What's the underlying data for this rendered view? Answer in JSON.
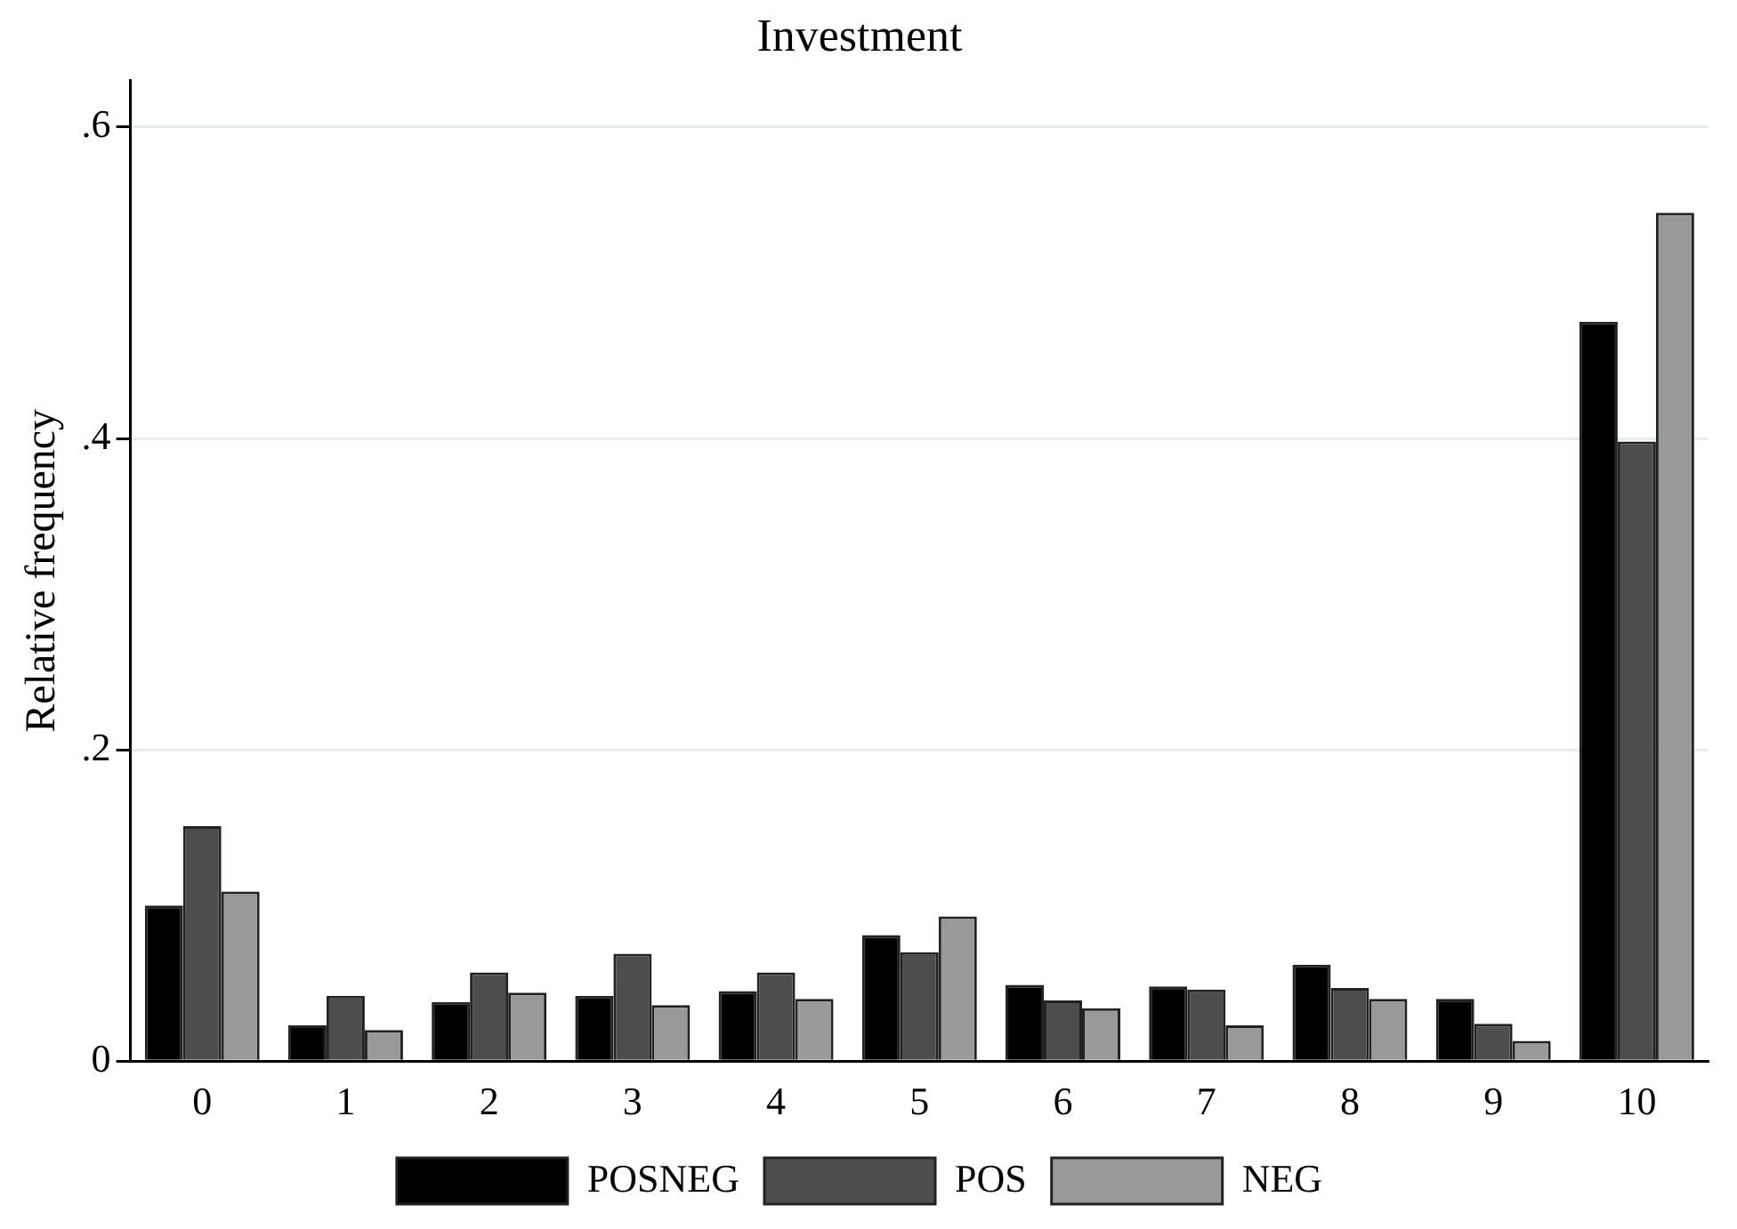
{
  "chart_data": {
    "type": "bar",
    "title": "Investment",
    "ylabel": "Relative frequency",
    "categories": [
      "0",
      "1",
      "2",
      "3",
      "4",
      "5",
      "6",
      "7",
      "8",
      "9",
      "10"
    ],
    "series": [
      {
        "name": "POSNEG",
        "color": "#000000",
        "values": [
          0.1,
          0.023,
          0.038,
          0.042,
          0.045,
          0.081,
          0.049,
          0.048,
          0.062,
          0.04,
          0.475
        ]
      },
      {
        "name": "POS",
        "color": "#4d4d4d",
        "values": [
          0.151,
          0.042,
          0.057,
          0.069,
          0.057,
          0.07,
          0.039,
          0.046,
          0.047,
          0.024,
          0.398
        ]
      },
      {
        "name": "NEG",
        "color": "#999999",
        "values": [
          0.109,
          0.02,
          0.044,
          0.036,
          0.04,
          0.093,
          0.034,
          0.023,
          0.04,
          0.013,
          0.545
        ]
      }
    ],
    "ylim": [
      0,
      0.63
    ],
    "yticks": [
      {
        "value": 0,
        "label": "0"
      },
      {
        "value": 0.2,
        "label": ".2"
      },
      {
        "value": 0.4,
        "label": ".4"
      },
      {
        "value": 0.6,
        "label": ".6"
      }
    ],
    "grid": "y",
    "legend": "bottom"
  }
}
